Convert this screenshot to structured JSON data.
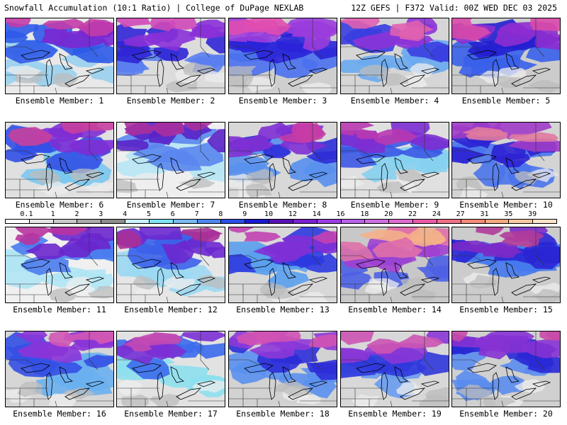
{
  "header": {
    "title_left": "Snowfall Accumulation (10:1 Ratio) | College of DuPage NEXLAB",
    "title_right": "12Z GEFS | F372 Valid: 00Z WED DEC 03 2025"
  },
  "colorbar": {
    "labels": [
      "0.1",
      "1",
      "2",
      "3",
      "4",
      "5",
      "6",
      "7",
      "8",
      "9",
      "10",
      "12",
      "14",
      "16",
      "18",
      "20",
      "22",
      "24",
      "27",
      "31",
      "35",
      "39"
    ],
    "colors": [
      "#ffffff",
      "#e4e4e4",
      "#c8c8c8",
      "#a9a9a9",
      "#8c8c8c",
      "#c9f0ff",
      "#7ee3f2",
      "#79b8f0",
      "#4d86f0",
      "#2b4fe6",
      "#1a1ad2",
      "#5a12b6",
      "#7b1fd0",
      "#9a3ee2",
      "#b862e8",
      "#cf6ee0",
      "#e06bd0",
      "#e95aa6",
      "#ef6f86",
      "#f28a78",
      "#f5a880",
      "#f8c8a0",
      "#fbe2c8"
    ]
  },
  "panels": [
    {
      "caption": "Ensemble Member: 1",
      "palette": [
        "#e8e8e8",
        "#9ad0ee",
        "#2d5ae8",
        "#7a28d0",
        "#c33ca8"
      ]
    },
    {
      "caption": "Ensemble Member: 2",
      "palette": [
        "#dcdcdc",
        "#5a7ef0",
        "#3026d6",
        "#8a30d8",
        "#d048b8"
      ]
    },
    {
      "caption": "Ensemble Member: 3",
      "palette": [
        "#cfcfcf",
        "#4a70ee",
        "#2a22d8",
        "#9a3cdc",
        "#e04cb0"
      ]
    },
    {
      "caption": "Ensemble Member: 4",
      "palette": [
        "#d6d6d6",
        "#6aaaf0",
        "#3a3ee0",
        "#8c34d8",
        "#e060b0"
      ]
    },
    {
      "caption": "Ensemble Member: 5",
      "palette": [
        "#cccccc",
        "#3a60ea",
        "#2320d0",
        "#8e2ed0",
        "#d84aa8"
      ]
    },
    {
      "caption": "Ensemble Member: 6",
      "palette": [
        "#e0e0e0",
        "#7ac8f0",
        "#3250e6",
        "#7e2ed4",
        "#c8409e"
      ]
    },
    {
      "caption": "Ensemble Member: 7",
      "palette": [
        "#efefef",
        "#b8e6f4",
        "#5a86ee",
        "#5a22c8",
        "#a8309e"
      ]
    },
    {
      "caption": "Ensemble Member: 8",
      "palette": [
        "#d8d8d8",
        "#5890ee",
        "#2e2ed8",
        "#8030d4",
        "#c63ca6"
      ]
    },
    {
      "caption": "Ensemble Member: 9",
      "palette": [
        "#e0e0e0",
        "#86d0f0",
        "#3c58e6",
        "#7c2ed2",
        "#b838b0"
      ]
    },
    {
      "caption": "Ensemble Member: 10",
      "palette": [
        "#d4d4d4",
        "#4a74ec",
        "#2c22d4",
        "#a03cc8",
        "#e07aa0"
      ]
    },
    {
      "caption": "Ensemble Member: 11",
      "palette": [
        "#f0f0f0",
        "#b0e4f4",
        "#4a7cee",
        "#6a26cc",
        "#b8349e"
      ]
    },
    {
      "caption": "Ensemble Member: 12",
      "palette": [
        "#e6e6e6",
        "#9cd8f2",
        "#3c60ea",
        "#6c28d0",
        "#a83098"
      ]
    },
    {
      "caption": "Ensemble Member: 13",
      "palette": [
        "#d8d8d8",
        "#5aa0ee",
        "#2e3ae0",
        "#8030d6",
        "#c242b2"
      ]
    },
    {
      "caption": "Ensemble Member: 14",
      "palette": [
        "#c8c8c8",
        "#4c60e4",
        "#a040d0",
        "#e070a8",
        "#f4b088"
      ]
    },
    {
      "caption": "Ensemble Member: 15",
      "palette": [
        "#cccccc",
        "#4478ee",
        "#2a26d4",
        "#7a2ac8",
        "#b03c9a"
      ]
    },
    {
      "caption": "Ensemble Member: 16",
      "palette": [
        "#d6d6d6",
        "#6ab0f0",
        "#3450e4",
        "#8a34d8",
        "#d056b6"
      ]
    },
    {
      "caption": "Ensemble Member: 17",
      "palette": [
        "#e2e2e2",
        "#8ee0ee",
        "#3c6cec",
        "#7c30d4",
        "#c24ab2"
      ]
    },
    {
      "caption": "Ensemble Member: 18",
      "palette": [
        "#d2d2d2",
        "#5a90ee",
        "#2e2ed8",
        "#8e38d8",
        "#d052b4"
      ]
    },
    {
      "caption": "Ensemble Member: 19",
      "palette": [
        "#d8d8d8",
        "#6a9cf0",
        "#3038dc",
        "#8a36d6",
        "#cc54b4"
      ]
    },
    {
      "caption": "Ensemble Member: 20",
      "palette": [
        "#d0d0d0",
        "#5a8cee",
        "#2a28d6",
        "#8632d4",
        "#c84aa8"
      ]
    }
  ]
}
